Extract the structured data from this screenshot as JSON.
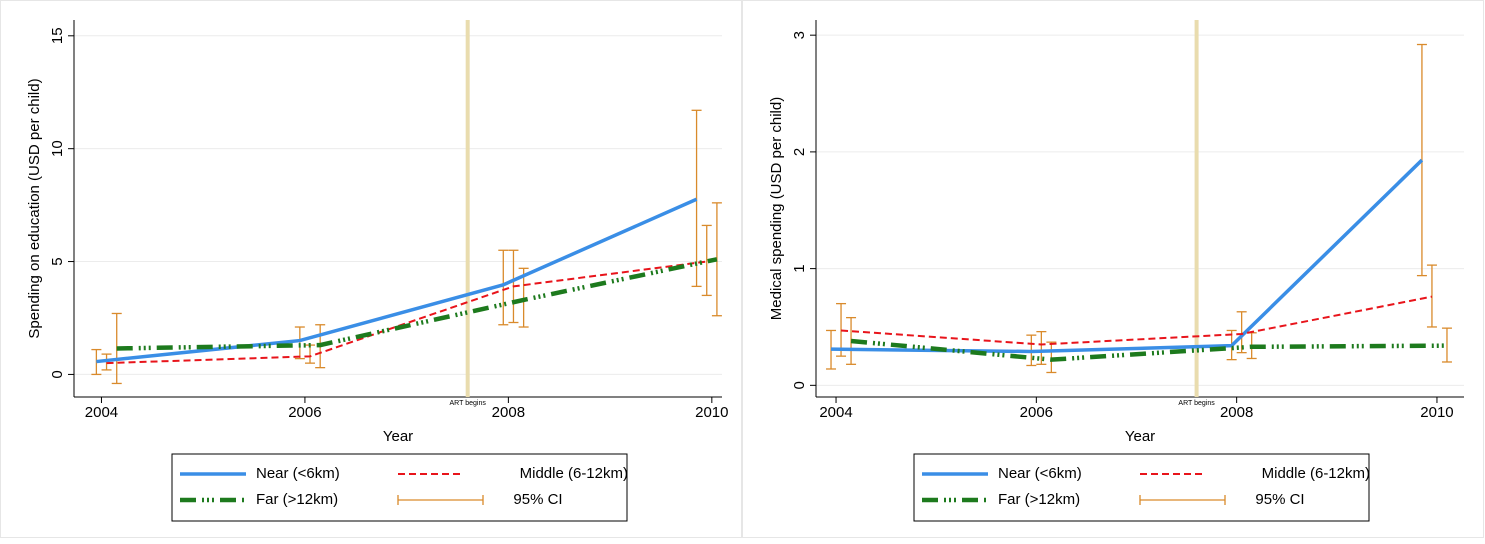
{
  "chart_data": [
    {
      "type": "line",
      "xlabel": "Year",
      "ylabel": "Spending on education (USD per child)",
      "xlim": [
        2003.73,
        2010.1
      ],
      "xticks": [
        2004,
        2006,
        2008,
        2010
      ],
      "ylim": [
        -1,
        15.7
      ],
      "yticks": [
        0,
        5,
        10,
        15
      ],
      "grid": true,
      "event_x": 2007.6,
      "event_label": "ART begins",
      "event_color": "#e9dcae",
      "ci_label": "95% CI",
      "ci_color": "#d98a2b",
      "series": [
        {
          "name": "Near (<6km)",
          "color": "#3a8ee6",
          "style": "solid",
          "x": [
            2003.95,
            2005.95,
            2007.95,
            2009.85
          ],
          "values": [
            0.57,
            1.5,
            3.97,
            7.76
          ],
          "ci_low": [
            0,
            0.7,
            2.2,
            3.9
          ],
          "ci_high": [
            1.1,
            2.1,
            5.5,
            11.7
          ]
        },
        {
          "name": "Middle (6-12km)",
          "color": "#e8141b",
          "style": "dashed",
          "x": [
            2004.05,
            2006.05,
            2008.05,
            2009.95
          ],
          "values": [
            0.5,
            0.8,
            3.9,
            5.0
          ],
          "ci_low": [
            0.2,
            0.5,
            2.3,
            3.5
          ],
          "ci_high": [
            0.9,
            1.3,
            5.5,
            6.6
          ]
        },
        {
          "name": "Far (>12km)",
          "color": "#1d7a1d",
          "style": "dashdot",
          "x": [
            2004.15,
            2006.15,
            2008.15,
            2010.05
          ],
          "values": [
            1.15,
            1.3,
            3.3,
            5.1
          ],
          "ci_low": [
            -0.4,
            0.3,
            2.1,
            2.6
          ],
          "ci_high": [
            2.7,
            2.2,
            4.7,
            7.6
          ]
        }
      ]
    },
    {
      "type": "line",
      "xlabel": "Year",
      "ylabel": "Medical spending (USD per child)",
      "xlim": [
        2003.8,
        2010.27
      ],
      "xticks": [
        2004,
        2006,
        2008,
        2010
      ],
      "ylim": [
        -0.1,
        3.13
      ],
      "yticks": [
        0,
        1,
        2,
        3
      ],
      "grid": true,
      "event_x": 2007.6,
      "event_label": "ART begins",
      "event_color": "#e9dcae",
      "ci_label": "95% CI",
      "ci_color": "#d98a2b",
      "series": [
        {
          "name": "Near (<6km)",
          "color": "#3a8ee6",
          "style": "solid",
          "x": [
            2003.95,
            2005.95,
            2007.95,
            2009.85
          ],
          "values": [
            0.31,
            0.29,
            0.34,
            1.93
          ],
          "ci_low": [
            0.14,
            0.17,
            0.22,
            0.94
          ],
          "ci_high": [
            0.47,
            0.43,
            0.47,
            2.92
          ]
        },
        {
          "name": "Middle (6-12km)",
          "color": "#e8141b",
          "style": "dashed",
          "x": [
            2004.05,
            2006.05,
            2008.05,
            2009.95
          ],
          "values": [
            0.47,
            0.35,
            0.44,
            0.76
          ],
          "ci_low": [
            0.25,
            0.18,
            0.28,
            0.5
          ],
          "ci_high": [
            0.7,
            0.46,
            0.63,
            1.03
          ]
        },
        {
          "name": "Far (>12km)",
          "color": "#1d7a1d",
          "style": "dashdot",
          "x": [
            2004.15,
            2006.15,
            2008.15,
            2010.1
          ],
          "values": [
            0.38,
            0.22,
            0.33,
            0.34
          ],
          "ci_low": [
            0.18,
            0.11,
            0.23,
            0.2
          ],
          "ci_high": [
            0.58,
            0.37,
            0.45,
            0.49
          ]
        }
      ]
    }
  ]
}
